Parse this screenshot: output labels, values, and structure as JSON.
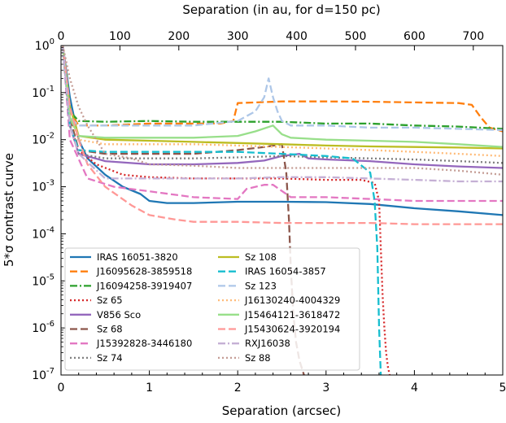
{
  "chart_data": {
    "type": "line",
    "xlabel": "Separation (arcsec)",
    "ylabel": "5*σ contrast curve",
    "x2label": "Separation (in au, for d=150 pc)",
    "xlim": [
      0,
      5
    ],
    "ylim": [
      1e-07,
      1
    ],
    "yscale": "log",
    "x2lim": [
      0,
      750
    ],
    "xticks": [
      "0",
      "1",
      "2",
      "3",
      "4",
      "5"
    ],
    "x2ticks": [
      "0",
      "100",
      "200",
      "300",
      "400",
      "500",
      "600",
      "700"
    ],
    "yticks": [
      "10^-7",
      "10^-6",
      "10^-5",
      "10^-4",
      "10^-3",
      "10^-2",
      "10^-1",
      "10^0"
    ],
    "legend_position": "lower-left",
    "series": [
      {
        "name": "IRAS 16051-3820",
        "color": "#1f77b4",
        "dash": "solid",
        "x": [
          0.02,
          0.1,
          0.2,
          0.3,
          0.5,
          0.7,
          0.9,
          1.0,
          1.2,
          1.5,
          2.0,
          2.5,
          3.0,
          3.5,
          4.0,
          4.5,
          5.0
        ],
        "y": [
          1.0,
          0.08,
          0.01,
          0.004,
          0.0018,
          0.001,
          0.0007,
          0.0005,
          0.00045,
          0.00045,
          0.00048,
          0.00048,
          0.00047,
          0.00043,
          0.00035,
          0.0003,
          0.00025
        ]
      },
      {
        "name": "J16095628-3859518",
        "color": "#ff7f0e",
        "dash": "dashed",
        "x": [
          0.02,
          0.1,
          0.2,
          0.5,
          1.0,
          1.5,
          1.8,
          1.95,
          2.0,
          2.5,
          3.0,
          3.5,
          4.0,
          4.5,
          4.65,
          4.75,
          4.85,
          5.0
        ],
        "y": [
          1.0,
          0.04,
          0.02,
          0.02,
          0.022,
          0.022,
          0.022,
          0.025,
          0.06,
          0.065,
          0.065,
          0.064,
          0.062,
          0.06,
          0.055,
          0.03,
          0.018,
          0.015
        ]
      },
      {
        "name": "J16094258-3919407",
        "color": "#2ca02c",
        "dash": "dashdot",
        "x": [
          0.02,
          0.1,
          0.2,
          0.5,
          1.0,
          1.5,
          2.0,
          2.5,
          3.0,
          3.5,
          4.0,
          4.5,
          5.0
        ],
        "y": [
          1.0,
          0.04,
          0.025,
          0.024,
          0.025,
          0.024,
          0.024,
          0.024,
          0.022,
          0.022,
          0.02,
          0.019,
          0.017
        ]
      },
      {
        "name": "Sz 65",
        "color": "#d62728",
        "dash": "dotted",
        "x": [
          0.02,
          0.1,
          0.2,
          0.4,
          0.7,
          1.0,
          1.5,
          2.0,
          2.5,
          3.0,
          3.4,
          3.55,
          3.6,
          3.62,
          3.64,
          3.66,
          3.68,
          3.7,
          3.72
        ],
        "y": [
          1.0,
          0.02,
          0.006,
          0.003,
          0.0018,
          0.0016,
          0.0015,
          0.0015,
          0.0015,
          0.0014,
          0.0014,
          0.0012,
          0.0005,
          5e-05,
          5e-06,
          1e-06,
          3e-07,
          1.5e-07,
          1e-07
        ]
      },
      {
        "name": "V856 Sco",
        "color": "#9467bd",
        "dash": "solid",
        "x": [
          0.02,
          0.1,
          0.2,
          0.5,
          1.0,
          1.5,
          2.0,
          2.3,
          2.5,
          2.7,
          2.8,
          3.0,
          3.5,
          4.0,
          4.5,
          5.0
        ],
        "y": [
          1.0,
          0.02,
          0.005,
          0.0035,
          0.003,
          0.003,
          0.0032,
          0.0036,
          0.0045,
          0.005,
          0.004,
          0.0038,
          0.0035,
          0.003,
          0.0027,
          0.0025
        ]
      },
      {
        "name": "Sz 68",
        "color": "#8c564b",
        "dash": "dashed",
        "x": [
          0.02,
          0.1,
          0.2,
          0.5,
          1.0,
          1.5,
          2.0,
          2.3,
          2.5,
          2.55,
          2.58,
          2.6,
          2.63,
          2.66,
          2.7,
          2.75
        ],
        "y": [
          1.0,
          0.03,
          0.006,
          0.005,
          0.005,
          0.005,
          0.006,
          0.007,
          0.008,
          0.002,
          0.0002,
          2e-05,
          2e-06,
          5e-07,
          2e-07,
          1e-07
        ]
      },
      {
        "name": "J15392828-3446180",
        "color": "#e377c2",
        "dash": "dashed",
        "x": [
          0.02,
          0.1,
          0.3,
          0.6,
          1.0,
          1.5,
          2.0,
          2.1,
          2.3,
          2.4,
          2.6,
          3.0,
          3.5,
          4.0,
          4.5,
          5.0
        ],
        "y": [
          1.0,
          0.01,
          0.0015,
          0.001,
          0.0008,
          0.0006,
          0.00055,
          0.0009,
          0.0011,
          0.0011,
          0.0006,
          0.0006,
          0.00055,
          0.0005,
          0.0005,
          0.0005
        ]
      },
      {
        "name": "Sz 74",
        "color": "#7f7f7f",
        "dash": "dotted",
        "x": [
          0.02,
          0.1,
          0.2,
          0.5,
          1.0,
          1.5,
          2.0,
          2.5,
          3.0,
          3.5,
          4.0,
          4.5,
          5.0
        ],
        "y": [
          1.0,
          0.02,
          0.005,
          0.004,
          0.004,
          0.004,
          0.0042,
          0.0045,
          0.0042,
          0.004,
          0.0038,
          0.0035,
          0.0032
        ]
      },
      {
        "name": "Sz 108",
        "color": "#bcbd22",
        "dash": "solid",
        "x": [
          0.02,
          0.1,
          0.2,
          0.5,
          1.0,
          1.5,
          2.0,
          2.5,
          3.0,
          3.5,
          4.0,
          4.5,
          5.0
        ],
        "y": [
          1.0,
          0.05,
          0.012,
          0.01,
          0.0095,
          0.009,
          0.0085,
          0.008,
          0.0075,
          0.0072,
          0.007,
          0.0068,
          0.0065
        ]
      },
      {
        "name": "IRAS 16054-3857",
        "color": "#17becf",
        "dash": "dashed",
        "x": [
          0.02,
          0.1,
          0.2,
          0.5,
          1.0,
          1.5,
          2.0,
          2.5,
          3.0,
          3.3,
          3.5,
          3.55,
          3.58,
          3.6,
          3.62
        ],
        "y": [
          1.0,
          0.02,
          0.006,
          0.0055,
          0.0055,
          0.0055,
          0.0055,
          0.005,
          0.0045,
          0.004,
          0.002,
          0.0005,
          5e-05,
          1e-06,
          1e-07
        ]
      },
      {
        "name": "Sz 123",
        "color": "#aec7e8",
        "dash": "dashed",
        "x": [
          0.02,
          0.1,
          0.2,
          0.5,
          1.0,
          1.5,
          2.0,
          2.2,
          2.3,
          2.35,
          2.4,
          2.45,
          2.5,
          2.6,
          3.0,
          3.5,
          4.0,
          4.5,
          5.0
        ],
        "y": [
          1.0,
          0.03,
          0.02,
          0.02,
          0.02,
          0.02,
          0.025,
          0.04,
          0.08,
          0.2,
          0.08,
          0.04,
          0.025,
          0.02,
          0.02,
          0.018,
          0.018,
          0.017,
          0.016
        ]
      },
      {
        "name": "J16130240-4004329",
        "color": "#ffbb78",
        "dash": "dotted",
        "x": [
          0.02,
          0.1,
          0.2,
          0.5,
          1.0,
          1.5,
          2.0,
          2.5,
          3.0,
          3.5,
          4.0,
          4.5,
          5.0
        ],
        "y": [
          1.0,
          0.03,
          0.01,
          0.008,
          0.008,
          0.008,
          0.0075,
          0.007,
          0.0065,
          0.006,
          0.0055,
          0.005,
          0.0045
        ]
      },
      {
        "name": "J15464121-3618472",
        "color": "#98df8a",
        "dash": "solid",
        "x": [
          0.02,
          0.1,
          0.2,
          0.5,
          1.0,
          1.5,
          2.0,
          2.2,
          2.4,
          2.5,
          2.6,
          3.0,
          3.5,
          4.0,
          4.5,
          5.0
        ],
        "y": [
          1.0,
          0.03,
          0.012,
          0.011,
          0.011,
          0.011,
          0.012,
          0.015,
          0.02,
          0.013,
          0.011,
          0.01,
          0.0095,
          0.009,
          0.008,
          0.007
        ]
      },
      {
        "name": "J15430624-3920194",
        "color": "#ff9896",
        "dash": "dashed",
        "x": [
          0.02,
          0.1,
          0.2,
          0.3,
          0.5,
          0.8,
          1.0,
          1.3,
          1.5,
          2.0,
          2.5,
          3.0,
          3.5,
          4.0,
          4.5,
          5.0
        ],
        "y": [
          1.0,
          0.05,
          0.01,
          0.003,
          0.001,
          0.0004,
          0.00025,
          0.0002,
          0.00018,
          0.00018,
          0.00017,
          0.00017,
          0.00017,
          0.00016,
          0.00016,
          0.00016
        ]
      },
      {
        "name": "RXJ16038",
        "color": "#c5b0d5",
        "dash": "dashdot",
        "x": [
          0.02,
          0.1,
          0.2,
          0.5,
          1.0,
          1.5,
          2.0,
          2.5,
          3.0,
          3.5,
          4.0,
          4.5,
          5.0
        ],
        "y": [
          1.0,
          0.02,
          0.005,
          0.0015,
          0.0015,
          0.0015,
          0.0015,
          0.0016,
          0.0016,
          0.0015,
          0.0014,
          0.0013,
          0.0013
        ]
      },
      {
        "name": "Sz 88",
        "color": "#c49c94",
        "dash": "dotted",
        "x": [
          0.02,
          0.1,
          0.2,
          0.3,
          0.5,
          0.8,
          1.0,
          1.5,
          2.0,
          2.5,
          3.0,
          3.5,
          4.0,
          4.5,
          5.0
        ],
        "y": [
          1.0,
          0.2,
          0.05,
          0.02,
          0.005,
          0.004,
          0.003,
          0.0028,
          0.0025,
          0.0025,
          0.0025,
          0.0025,
          0.0025,
          0.0022,
          0.0018
        ]
      }
    ]
  }
}
